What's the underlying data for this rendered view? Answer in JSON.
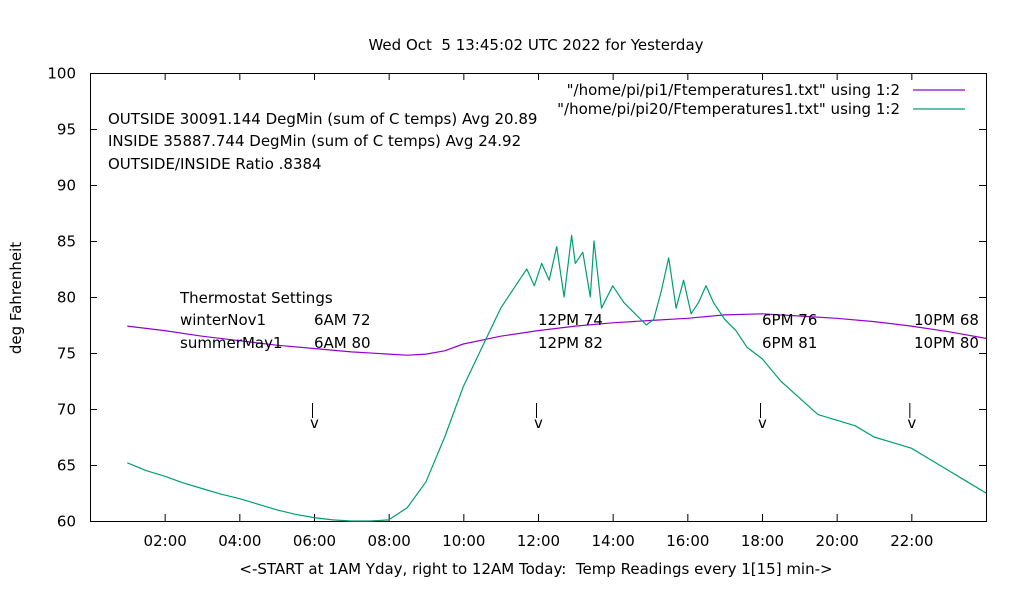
{
  "chart_data": {
    "type": "line",
    "title": "Wed Oct  5 13:45:02 UTC 2022 for Yesterday",
    "xlabel": "<-START at 1AM Yday, right to 12AM Today:  Temp Readings every 1[15] min->",
    "ylabel": "deg Fahrenheit",
    "xlim": [
      0,
      24
    ],
    "ylim": [
      60,
      100
    ],
    "x_unit": "hours",
    "x_ticks": [
      {
        "value": 2,
        "label": "02:00"
      },
      {
        "value": 4,
        "label": "04:00"
      },
      {
        "value": 6,
        "label": "06:00"
      },
      {
        "value": 8,
        "label": "08:00"
      },
      {
        "value": 10,
        "label": "10:00"
      },
      {
        "value": 12,
        "label": "12:00"
      },
      {
        "value": 14,
        "label": "14:00"
      },
      {
        "value": 16,
        "label": "16:00"
      },
      {
        "value": 18,
        "label": "18:00"
      },
      {
        "value": 20,
        "label": "20:00"
      },
      {
        "value": 22,
        "label": "22:00"
      }
    ],
    "y_ticks": [
      {
        "value": 60,
        "label": "60"
      },
      {
        "value": 65,
        "label": "65"
      },
      {
        "value": 70,
        "label": "70"
      },
      {
        "value": 75,
        "label": "75"
      },
      {
        "value": 80,
        "label": "80"
      },
      {
        "value": 85,
        "label": "85"
      },
      {
        "value": 90,
        "label": "90"
      },
      {
        "value": 95,
        "label": "95"
      },
      {
        "value": 100,
        "label": "100"
      }
    ],
    "grid": false,
    "legend_position": "top-right",
    "series": [
      {
        "name": "\"/home/pi/pi1/Ftemperatures1.txt\" using 1:2",
        "color": "#9400d3",
        "x": [
          1.0,
          2.0,
          3.0,
          4.0,
          5.0,
          6.0,
          7.0,
          8.0,
          8.5,
          9.0,
          9.5,
          10.0,
          11.0,
          12.0,
          13.0,
          14.0,
          15.0,
          16.0,
          17.0,
          18.0,
          19.0,
          20.0,
          21.0,
          22.0,
          23.0,
          24.0
        ],
        "y": [
          77.4,
          77.0,
          76.5,
          76.1,
          75.7,
          75.4,
          75.1,
          74.9,
          74.8,
          74.9,
          75.2,
          75.8,
          76.5,
          77.0,
          77.4,
          77.7,
          77.9,
          78.1,
          78.4,
          78.5,
          78.3,
          78.1,
          77.8,
          77.4,
          76.9,
          76.3
        ]
      },
      {
        "name": "\"/home/pi/pi20/Ftemperatures1.txt\" using 1:2",
        "color": "#009e73",
        "x": [
          1.0,
          1.5,
          2.0,
          2.5,
          3.0,
          3.5,
          4.0,
          4.5,
          5.0,
          5.5,
          6.0,
          6.5,
          7.0,
          7.5,
          8.0,
          8.5,
          9.0,
          9.5,
          10.0,
          10.5,
          11.0,
          11.5,
          11.7,
          11.9,
          12.1,
          12.3,
          12.5,
          12.7,
          12.9,
          13.0,
          13.2,
          13.4,
          13.5,
          13.7,
          14.0,
          14.3,
          14.6,
          14.9,
          15.1,
          15.3,
          15.5,
          15.7,
          15.9,
          16.1,
          16.3,
          16.5,
          16.7,
          17.0,
          17.3,
          17.6,
          18.0,
          18.5,
          19.0,
          19.5,
          20.0,
          20.5,
          21.0,
          21.5,
          22.0,
          22.5,
          23.0,
          23.5,
          24.0
        ],
        "y": [
          65.2,
          64.5,
          64.0,
          63.4,
          62.9,
          62.4,
          62.0,
          61.5,
          61.0,
          60.6,
          60.3,
          60.1,
          59.9,
          59.9,
          60.1,
          61.2,
          63.5,
          67.5,
          72.0,
          75.5,
          79.0,
          81.5,
          82.5,
          81.0,
          83.0,
          81.5,
          84.5,
          80.0,
          85.5,
          83.0,
          84.0,
          80.0,
          85.0,
          79.0,
          81.0,
          79.5,
          78.5,
          77.5,
          78.0,
          80.5,
          83.5,
          79.0,
          81.5,
          78.5,
          79.5,
          81.0,
          79.5,
          78.0,
          77.0,
          75.5,
          74.5,
          72.5,
          71.0,
          69.5,
          69.0,
          68.5,
          67.5,
          67.0,
          66.5,
          65.5,
          64.5,
          63.5,
          62.5
        ]
      }
    ],
    "annotations": {
      "stats": [
        "OUTSIDE 30091.144 DegMin (sum of C temps) Avg 20.89",
        "INSIDE 35887.744 DegMin (sum of C temps) Avg 24.92",
        "OUTSIDE/INSIDE Ratio .8384"
      ],
      "thermostat_header": "Thermostat Settings",
      "thermostat_rows": [
        {
          "label": "winterNov1",
          "settings": [
            "6AM 72",
            "12PM 74",
            "6PM 76",
            "10PM 68"
          ]
        },
        {
          "label": "summerMay1",
          "settings": [
            "6AM 80",
            "12PM 82",
            "6PM 81",
            "10PM 80"
          ]
        }
      ],
      "arrow_markers": [
        {
          "x": 6.0,
          "label": "v"
        },
        {
          "x": 12.0,
          "label": "v"
        },
        {
          "x": 18.0,
          "label": "v"
        },
        {
          "x": 22.0,
          "label": "v"
        }
      ]
    }
  }
}
